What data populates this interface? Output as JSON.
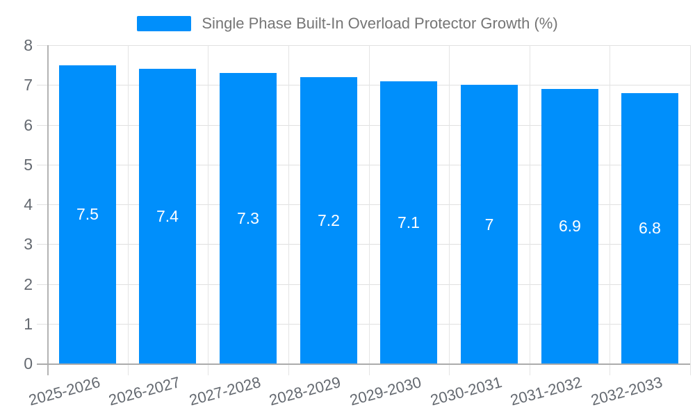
{
  "chart_data": {
    "type": "bar",
    "title": "Single Phase Built-In Overload Protector Growth (%)",
    "categories": [
      "2025-2026",
      "2026-2027",
      "2027-2028",
      "2028-2029",
      "2029-2030",
      "2030-2031",
      "2031-2032",
      "2032-2033"
    ],
    "values": [
      7.5,
      7.4,
      7.3,
      7.2,
      7.1,
      7,
      6.9,
      6.8
    ],
    "xlabel": "",
    "ylabel": "",
    "ylim": [
      0,
      8
    ],
    "yticks": [
      0,
      1,
      2,
      3,
      4,
      5,
      6,
      7,
      8
    ],
    "grid": true,
    "legend_position": "top",
    "bar_color": "#008FFB",
    "grid_color": "#e0e0e0",
    "axis_color": "#b0b0b0",
    "tick_label_color": "#646970",
    "value_label_color": "#ffffff",
    "legend_text_color": "#757575"
  }
}
